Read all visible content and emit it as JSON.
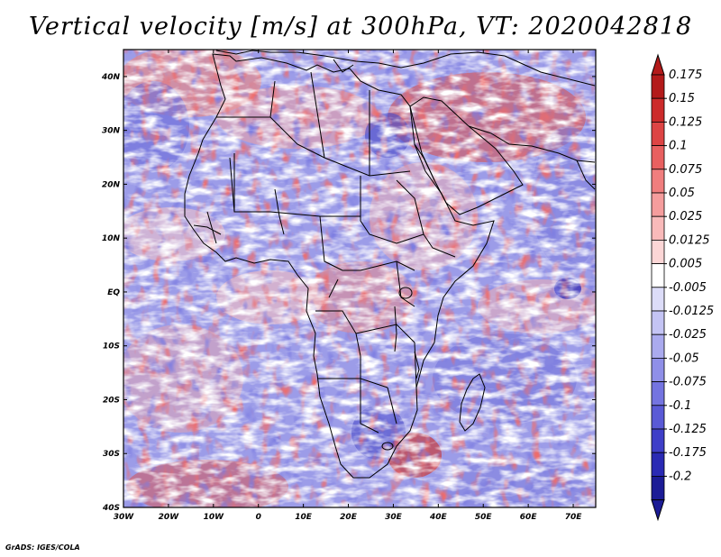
{
  "title": "Vertical velocity [m/s] at 300hPa, VT: 2020042818",
  "credit": "GrADS: IGES/COLA",
  "map": {
    "lon_range": [
      -30,
      75
    ],
    "lat_range": [
      -40,
      45
    ],
    "lat_labels": [
      "40N",
      "30N",
      "20N",
      "10N",
      "EQ",
      "10S",
      "20S",
      "30S",
      "40S"
    ],
    "lat_values": [
      40,
      30,
      20,
      10,
      0,
      -10,
      -20,
      -30,
      -40
    ],
    "lon_labels": [
      "30W",
      "20W",
      "10W",
      "0",
      "10E",
      "20E",
      "30E",
      "40E",
      "50E",
      "60E",
      "70E"
    ],
    "lon_values": [
      -30,
      -20,
      -10,
      0,
      10,
      20,
      30,
      40,
      50,
      60,
      70
    ],
    "field_name": "vertical-velocity",
    "units": "m/s",
    "pressure_level": "300hPa",
    "valid_time": "2020042818"
  },
  "colorbar": {
    "levels": [
      {
        "label": "0.175",
        "color": "#b31a1a"
      },
      {
        "label": "0.15",
        "color": "#cc2b2b"
      },
      {
        "label": "0.125",
        "color": "#dd4444"
      },
      {
        "label": "0.1",
        "color": "#e86060"
      },
      {
        "label": "0.075",
        "color": "#f07e7e"
      },
      {
        "label": "0.05",
        "color": "#f59d9d"
      },
      {
        "label": "0.025",
        "color": "#f9baba"
      },
      {
        "label": "0.0125",
        "color": "#fcd6d6"
      },
      {
        "label": "0.005",
        "color": "#ffffff"
      },
      {
        "label": "-0.005",
        "color": "#dcdcf8"
      },
      {
        "label": "-0.0125",
        "color": "#c4c4f4"
      },
      {
        "label": "-0.025",
        "color": "#aaaaee"
      },
      {
        "label": "-0.05",
        "color": "#8f8fe8"
      },
      {
        "label": "-0.075",
        "color": "#7474e0"
      },
      {
        "label": "-0.1",
        "color": "#5a5ad6"
      },
      {
        "label": "-0.125",
        "color": "#3f3fc8"
      },
      {
        "label": "-0.175",
        "color": "#2a2ab4"
      },
      {
        "label": "-0.2",
        "color": "#1c1c96"
      }
    ],
    "top_arrow_color": "#b31a1a",
    "bottom_arrow_color": "#1c1c96"
  }
}
